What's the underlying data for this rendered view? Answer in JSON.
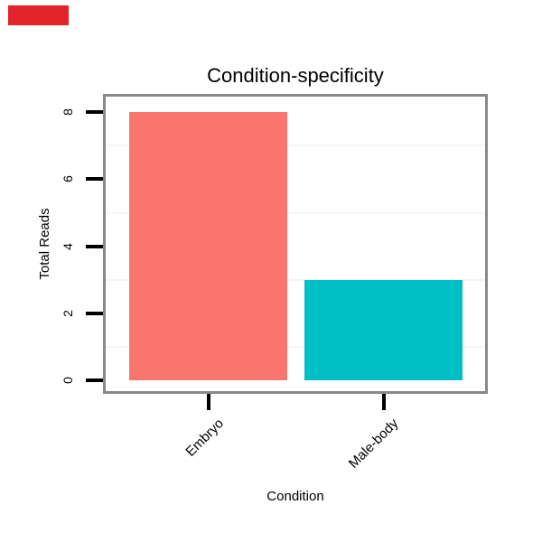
{
  "overlay_marker": {
    "color": "#e3242b"
  },
  "chart_data": {
    "type": "bar",
    "title": "Condition-specificity",
    "xlabel": "Condition",
    "ylabel": "Total Reads",
    "categories": [
      "Embryo",
      "Male-body"
    ],
    "values": [
      8,
      3
    ],
    "bar_colors": [
      "#F8766D",
      "#00BFC4"
    ],
    "yticks": [
      0,
      2,
      4,
      6,
      8
    ],
    "minor_gridlines": [
      1,
      3,
      5,
      7
    ],
    "ylim": [
      0,
      8.5
    ],
    "x_tick_label_angle": 45,
    "y_tick_label_angle": 90,
    "legend": "none",
    "grid": "minor-horizontal-only",
    "colors": {
      "panel_border": "#898989",
      "gridline": "#f5f5f5",
      "tick": "#000000",
      "text": "#000000",
      "background": "#ffffff"
    }
  }
}
